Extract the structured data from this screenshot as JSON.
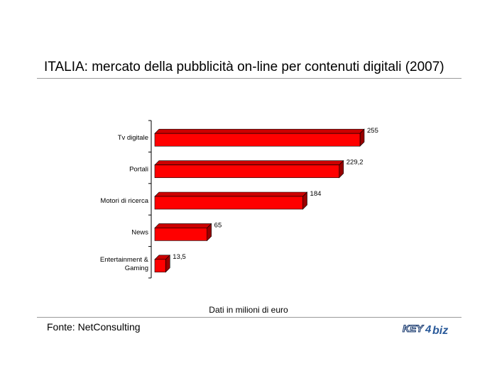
{
  "title": "ITALIA: mercato della pubblicità on-line per contenuti digitali (2007)",
  "note": "Dati in milioni di euro",
  "source": "Fonte: NetConsulting",
  "logo": {
    "name": "key4biz-logo",
    "text": "KEY4biz"
  },
  "colors": {
    "bar_face": "#ff0000",
    "bar_top": "#cc0000",
    "bar_side": "#990000",
    "rule": "#9a9a9a"
  },
  "chart_data": {
    "type": "bar",
    "orientation": "horizontal",
    "categories": [
      "Tv digitale",
      "Portali",
      "Motori di ricerca",
      "News",
      "Entertainment & Gaming"
    ],
    "values": [
      255,
      229.2,
      184,
      65,
      13.5
    ],
    "value_labels": [
      "255",
      "229,2",
      "184",
      "65",
      "13,5"
    ],
    "title": "",
    "xlabel": "",
    "ylabel": "",
    "xlim": [
      0,
      255
    ],
    "grid": false,
    "legend": "none",
    "style": "3d"
  }
}
